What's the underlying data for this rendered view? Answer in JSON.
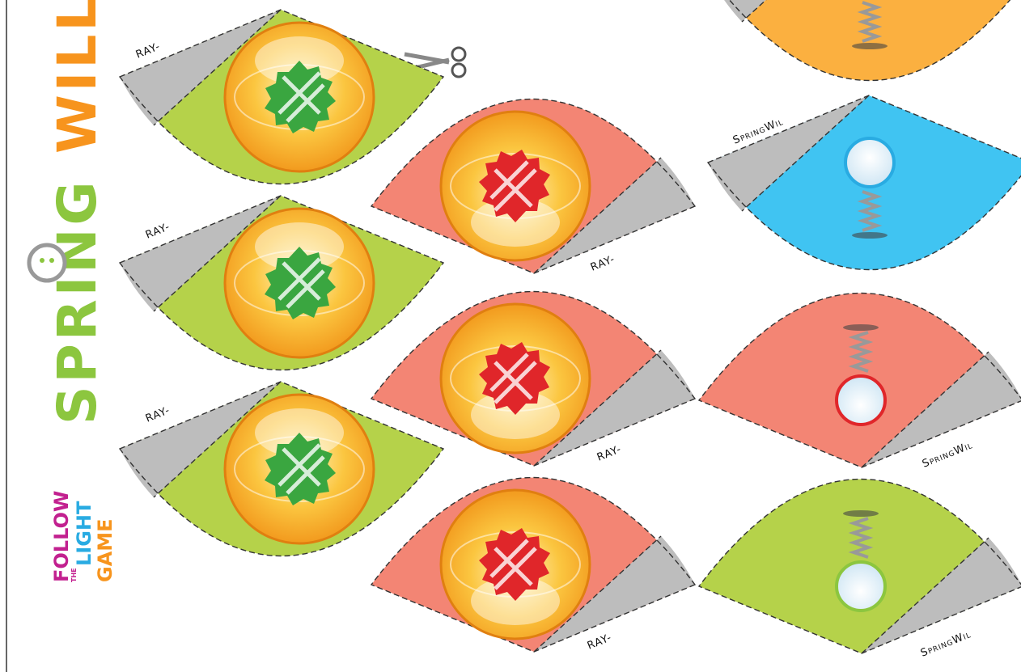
{
  "logo": {
    "brand_start": "SPRING",
    "brand_end": "WILL",
    "tagline": [
      "FOLLOW",
      "THE",
      "LIGHT",
      "GAME"
    ]
  },
  "left_cones": [
    {
      "label": "RAY-"
    },
    {
      "label": "RAY-"
    },
    {
      "label": "RAY-"
    }
  ],
  "middle_cones": [
    {
      "label": "RAY-"
    },
    {
      "label": "RAY-"
    },
    {
      "label": "RAY-"
    }
  ],
  "right_cones": [
    {
      "label": "SpringWil"
    },
    {
      "label": "SpringWil"
    },
    {
      "label": "SpringWil"
    }
  ]
}
